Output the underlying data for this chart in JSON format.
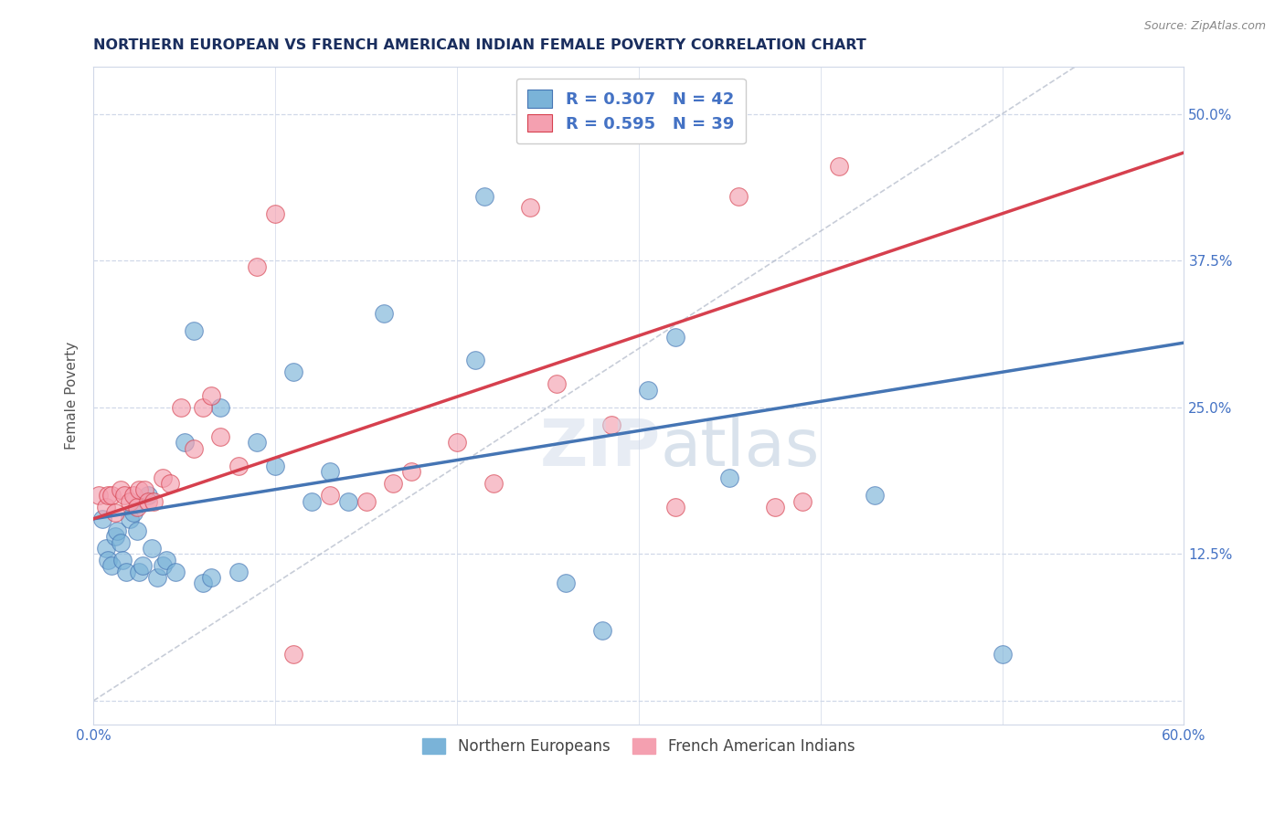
{
  "title": "NORTHERN EUROPEAN VS FRENCH AMERICAN INDIAN FEMALE POVERTY CORRELATION CHART",
  "source": "Source: ZipAtlas.com",
  "ylabel": "Female Poverty",
  "xlim": [
    0.0,
    0.6
  ],
  "ylim": [
    -0.02,
    0.54
  ],
  "x_ticks": [
    0.0,
    0.1,
    0.2,
    0.3,
    0.4,
    0.5,
    0.6
  ],
  "y_ticks": [
    0.0,
    0.125,
    0.25,
    0.375,
    0.5
  ],
  "blue_color": "#7ab3d8",
  "pink_color": "#f4a0b0",
  "blue_line_color": "#4575b4",
  "pink_line_color": "#d6404e",
  "diag_line_color": "#b0b8c8",
  "grid_color": "#d0d8e8",
  "title_color": "#1a2e5e",
  "tick_color": "#4472c4",
  "legend_R1": "R = 0.307",
  "legend_N1": "N = 42",
  "legend_R2": "R = 0.595",
  "legend_N2": "N = 39",
  "legend_label1": "Northern Europeans",
  "legend_label2": "French American Indians",
  "blue_x": [
    0.005,
    0.007,
    0.008,
    0.01,
    0.012,
    0.013,
    0.015,
    0.016,
    0.018,
    0.02,
    0.022,
    0.024,
    0.025,
    0.027,
    0.03,
    0.032,
    0.035,
    0.038,
    0.04,
    0.045,
    0.05,
    0.055,
    0.06,
    0.065,
    0.07,
    0.08,
    0.09,
    0.1,
    0.11,
    0.12,
    0.13,
    0.14,
    0.16,
    0.21,
    0.215,
    0.26,
    0.28,
    0.305,
    0.32,
    0.35,
    0.43,
    0.5
  ],
  "blue_y": [
    0.155,
    0.13,
    0.12,
    0.115,
    0.14,
    0.145,
    0.135,
    0.12,
    0.11,
    0.155,
    0.16,
    0.145,
    0.11,
    0.115,
    0.175,
    0.13,
    0.105,
    0.115,
    0.12,
    0.11,
    0.22,
    0.315,
    0.1,
    0.105,
    0.25,
    0.11,
    0.22,
    0.2,
    0.28,
    0.17,
    0.195,
    0.17,
    0.33,
    0.29,
    0.43,
    0.1,
    0.06,
    0.265,
    0.31,
    0.19,
    0.175,
    0.04
  ],
  "pink_x": [
    0.003,
    0.007,
    0.008,
    0.01,
    0.012,
    0.015,
    0.017,
    0.02,
    0.022,
    0.024,
    0.025,
    0.028,
    0.03,
    0.033,
    0.038,
    0.042,
    0.048,
    0.055,
    0.06,
    0.065,
    0.07,
    0.08,
    0.09,
    0.1,
    0.11,
    0.13,
    0.15,
    0.165,
    0.175,
    0.2,
    0.22,
    0.24,
    0.255,
    0.285,
    0.32,
    0.355,
    0.375,
    0.39,
    0.41
  ],
  "pink_y": [
    0.175,
    0.165,
    0.175,
    0.175,
    0.16,
    0.18,
    0.175,
    0.17,
    0.175,
    0.165,
    0.18,
    0.18,
    0.17,
    0.17,
    0.19,
    0.185,
    0.25,
    0.215,
    0.25,
    0.26,
    0.225,
    0.2,
    0.37,
    0.415,
    0.04,
    0.175,
    0.17,
    0.185,
    0.195,
    0.22,
    0.185,
    0.42,
    0.27,
    0.235,
    0.165,
    0.43,
    0.165,
    0.17,
    0.455
  ]
}
